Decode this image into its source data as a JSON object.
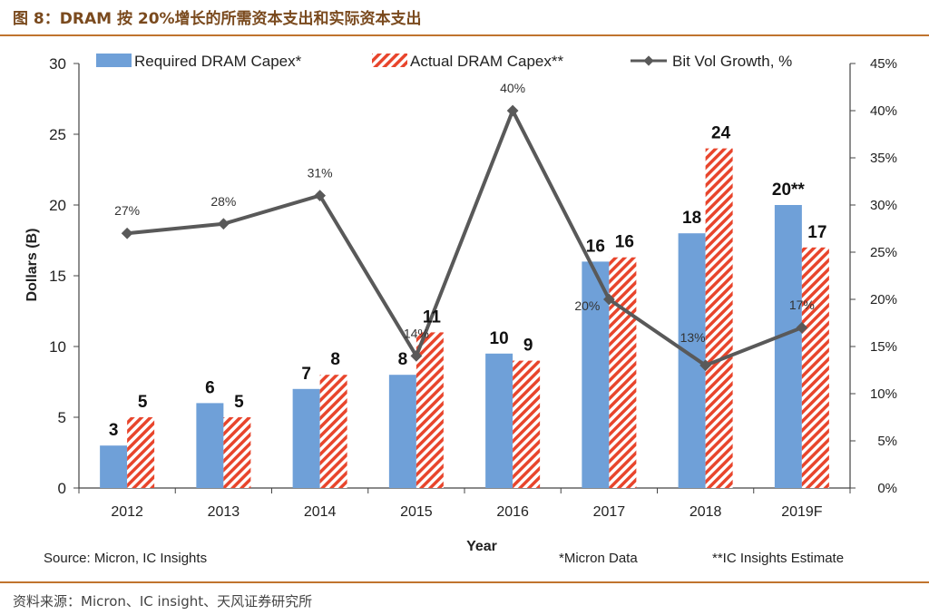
{
  "figure_title": "图 8：DRAM 按 20%增长的所需资本支出和实际资本支出",
  "figure_source": "资料来源：Micron、IC insight、天风证券研究所",
  "colors": {
    "required": "#6fa0d8",
    "actual": "#e8452c",
    "line": "#595959",
    "accent": "#c0742e"
  },
  "chart_data": {
    "type": "bar",
    "categories": [
      "2012",
      "2013",
      "2014",
      "2015",
      "2016",
      "2017",
      "2018",
      "2019F"
    ],
    "series": [
      {
        "name": "Required DRAM Capex*",
        "kind": "bar",
        "style": "solid",
        "values": [
          3,
          6,
          7,
          8,
          9.5,
          16,
          18,
          20
        ],
        "labels": [
          "3",
          "6",
          "7",
          "8",
          "10",
          "16",
          "18",
          "20**"
        ]
      },
      {
        "name": "Actual DRAM Capex**",
        "kind": "bar",
        "style": "hatched",
        "values": [
          5,
          5,
          8,
          11,
          9,
          16.3,
          24,
          17
        ],
        "labels": [
          "5",
          "5",
          "8",
          "11",
          "9",
          "16",
          "24",
          "17"
        ]
      },
      {
        "name": "Bit Vol Growth, %",
        "kind": "line",
        "axis": "right",
        "values": [
          27,
          28,
          31,
          14,
          40,
          20,
          13,
          17
        ],
        "labels": [
          "27%",
          "28%",
          "31%",
          "14%",
          "40%",
          "20%",
          "13%",
          "17%"
        ]
      }
    ],
    "xlabel": "Year",
    "ylabel": "Dollars (B)",
    "ylim": [
      0,
      30
    ],
    "yticks": [
      "0",
      "5",
      "10",
      "15",
      "20",
      "25",
      "30"
    ],
    "y2lim": [
      0,
      45
    ],
    "y2ticks": [
      "0%",
      "5%",
      "10%",
      "15%",
      "20%",
      "25%",
      "30%",
      "35%",
      "40%",
      "45%"
    ],
    "legend_position": "top",
    "grid": false,
    "footnotes": {
      "source": "Source: Micron, IC Insights",
      "note1": "*Micron Data",
      "note2": "**IC Insights Estimate"
    }
  }
}
